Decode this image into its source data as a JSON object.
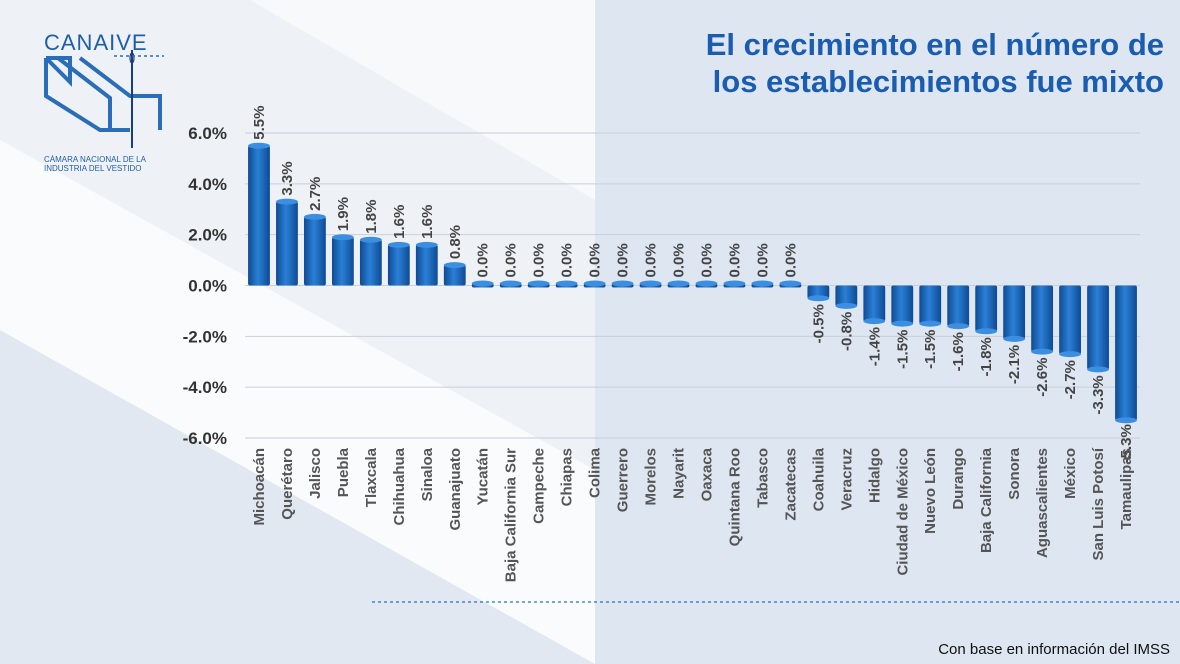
{
  "logo": {
    "wordmark": "CANAIVE",
    "subtitle_line1": "Cámara Nacional de la",
    "subtitle_line2": "Industria del Vestido"
  },
  "title_line1": "El crecimiento en el número de",
  "title_line2": "los establecimientos fue mixto",
  "source_note": "Con base en información del IMSS",
  "colors": {
    "bar": "#1f6fc5",
    "bar_dark": "#0f4a94",
    "title": "#1a5cb0"
  },
  "chart_data": {
    "type": "bar",
    "title": "El crecimiento en el número de los establecimientos fue mixto",
    "xlabel": "",
    "ylabel": "",
    "ylim": [
      -6,
      6
    ],
    "yticks": [
      6,
      4,
      2,
      0,
      -2,
      -4,
      -6
    ],
    "ytick_labels": [
      "6.0%",
      "4.0%",
      "2.0%",
      "0.0%",
      "-2.0%",
      "-4.0%",
      "-6.0%"
    ],
    "grid": true,
    "categories": [
      "Michoacán",
      "Querétaro",
      "Jalisco",
      "Puebla",
      "Tlaxcala",
      "Chihuahua",
      "Sinaloa",
      "Guanajuato",
      "Yucatán",
      "Baja California Sur",
      "Campeche",
      "Chiapas",
      "Colima",
      "Guerrero",
      "Morelos",
      "Nayarit",
      "Oaxaca",
      "Quintana Roo",
      "Tabasco",
      "Zacatecas",
      "Coahuila",
      "Veracruz",
      "Hidalgo",
      "Ciudad de México",
      "Nuevo León",
      "Durango",
      "Baja California",
      "Sonora",
      "Aguascalientes",
      "México",
      "San Luis Potosí",
      "Tamaulipas"
    ],
    "values": [
      5.5,
      3.3,
      2.7,
      1.9,
      1.8,
      1.6,
      1.6,
      0.8,
      0,
      0,
      0,
      0,
      0,
      0,
      0,
      0,
      0,
      0,
      0,
      0,
      -0.5,
      -0.8,
      -1.4,
      -1.5,
      -1.5,
      -1.6,
      -1.8,
      -2.1,
      -2.6,
      -2.7,
      -3.3,
      -5.3
    ],
    "data_labels": [
      "5.5%",
      "3.3%",
      "2.7%",
      "1.9%",
      "1.8%",
      "1.6%",
      "1.6%",
      "0.8%",
      "0.0%",
      "0.0%",
      "0.0%",
      "0.0%",
      "0.0%",
      "0.0%",
      "0.0%",
      "0.0%",
      "0.0%",
      "0.0%",
      "0.0%",
      "0.0%",
      "-0.5%",
      "-0.8%",
      "-1.4%",
      "-1.5%",
      "-1.5%",
      "-1.6%",
      "-1.8%",
      "-2.1%",
      "-2.6%",
      "-2.7%",
      "-3.3%",
      "-5.3%"
    ]
  }
}
